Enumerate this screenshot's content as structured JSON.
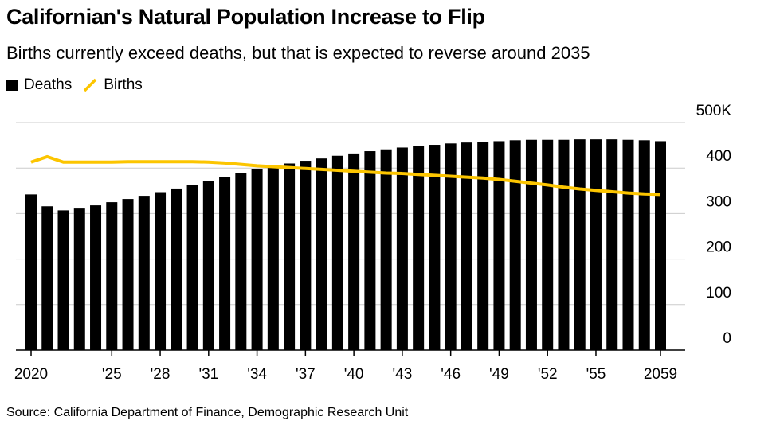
{
  "title": "Californian's Natural Population Increase to Flip",
  "subtitle": "Births currently exceed deaths, but that is expected to reverse around 2035",
  "source": "Source: California Department of Finance, Demographic Research Unit",
  "colors": {
    "deaths": "#000000",
    "births": "#fcc500",
    "grid": "#cccccc"
  },
  "chart_data": {
    "type": "bar",
    "legend_position": "top-left",
    "grid": true,
    "x": [
      2020,
      2021,
      2022,
      2023,
      2024,
      2025,
      2026,
      2027,
      2028,
      2029,
      2030,
      2031,
      2032,
      2033,
      2034,
      2035,
      2036,
      2037,
      2038,
      2039,
      2040,
      2041,
      2042,
      2043,
      2044,
      2045,
      2046,
      2047,
      2048,
      2049,
      2050,
      2051,
      2052,
      2053,
      2054,
      2055,
      2056,
      2057,
      2058,
      2059
    ],
    "x_tick_labels": [
      {
        "x": 2020,
        "label": "2020"
      },
      {
        "x": 2025,
        "label": "'25"
      },
      {
        "x": 2028,
        "label": "'28"
      },
      {
        "x": 2031,
        "label": "'31"
      },
      {
        "x": 2034,
        "label": "'34"
      },
      {
        "x": 2037,
        "label": "'37"
      },
      {
        "x": 2040,
        "label": "'40"
      },
      {
        "x": 2043,
        "label": "'43"
      },
      {
        "x": 2046,
        "label": "'46"
      },
      {
        "x": 2049,
        "label": "'49"
      },
      {
        "x": 2052,
        "label": "'52"
      },
      {
        "x": 2055,
        "label": "'55"
      },
      {
        "x": 2059,
        "label": "2059"
      }
    ],
    "y_ticks": [
      0,
      100,
      200,
      300,
      400,
      500
    ],
    "y_tick_labels": [
      "0",
      "100",
      "200",
      "300",
      "400",
      "500K"
    ],
    "ylim": [
      0,
      500
    ],
    "series": [
      {
        "name": "Deaths",
        "type": "bar",
        "values": [
          342,
          316,
          307,
          311,
          318,
          325,
          332,
          339,
          347,
          355,
          363,
          372,
          380,
          389,
          397,
          404,
          410,
          416,
          421,
          427,
          432,
          437,
          441,
          445,
          448,
          451,
          454,
          456,
          458,
          459,
          461,
          462,
          462,
          462,
          463,
          463,
          463,
          462,
          461,
          459
        ]
      },
      {
        "name": "Births",
        "type": "line",
        "values": [
          413,
          425,
          413,
          413,
          413,
          413,
          414,
          414,
          414,
          414,
          414,
          413,
          411,
          408,
          405,
          403,
          401,
          399,
          397,
          395,
          393,
          391,
          389,
          388,
          386,
          384,
          382,
          380,
          378,
          375,
          371,
          367,
          363,
          358,
          354,
          351,
          348,
          345,
          343,
          342
        ]
      }
    ]
  }
}
